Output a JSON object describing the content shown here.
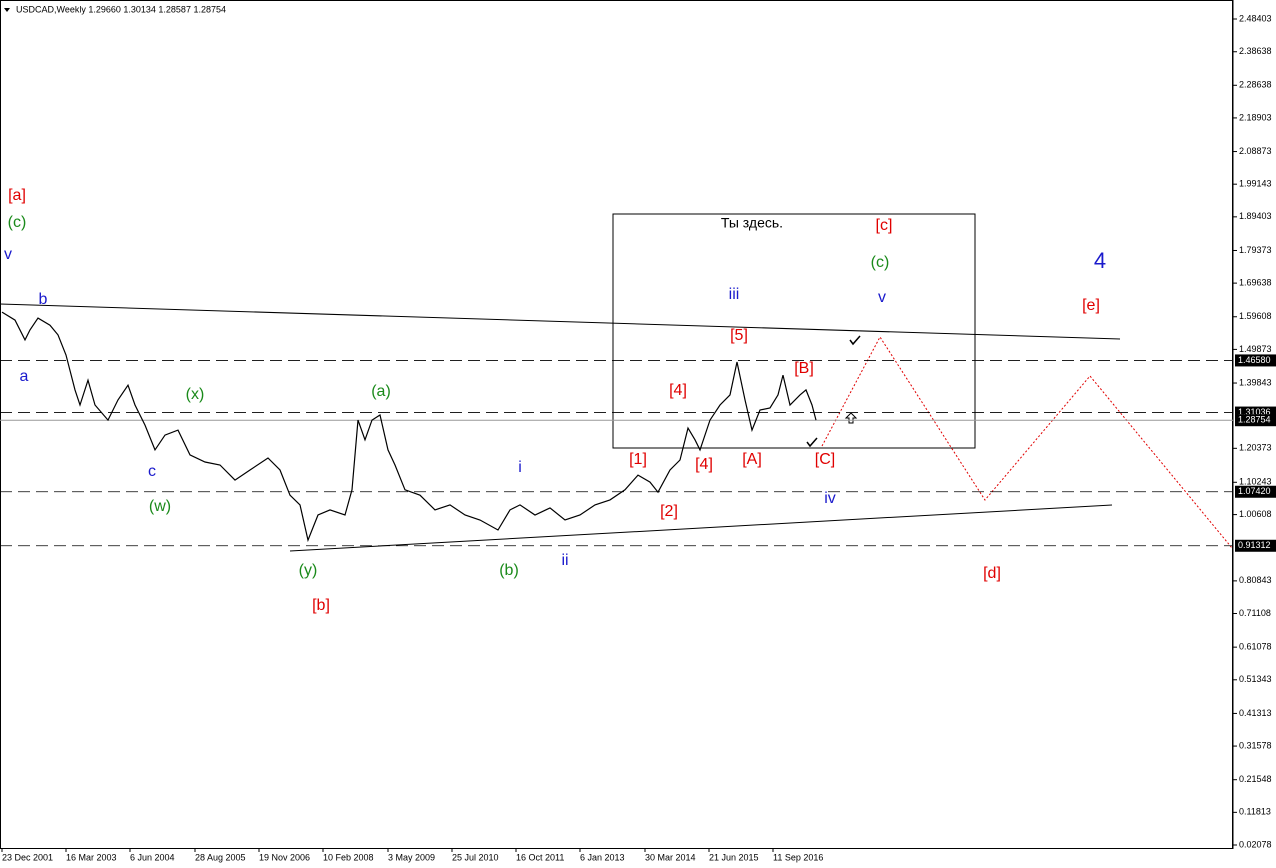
{
  "chart_data": {
    "type": "line",
    "title": "USDCAD,Weekly  1.29660 1.30134 1.28587 1.28754",
    "xlim": [
      -2,
      1230
    ],
    "ylim": [
      0.0118,
      2.5407
    ],
    "xticks": [
      {
        "value": 0,
        "label": "23 Dec 2001"
      },
      {
        "value": 64,
        "label": "16 Mar 2003"
      },
      {
        "value": 128,
        "label": "6 Jun 2004"
      },
      {
        "value": 193,
        "label": "28 Aug 2005"
      },
      {
        "value": 257,
        "label": "19 Nov 2006"
      },
      {
        "value": 321,
        "label": "10 Feb 2008"
      },
      {
        "value": 386,
        "label": "3 May 2009"
      },
      {
        "value": 450,
        "label": "25 Jul 2010"
      },
      {
        "value": 514,
        "label": "16 Oct 2011"
      },
      {
        "value": 578,
        "label": "6 Jan 2013"
      },
      {
        "value": 643,
        "label": "30 Mar 2014"
      },
      {
        "value": 707,
        "label": "21 Jun 2015"
      },
      {
        "value": 771,
        "label": "11 Sep 2016"
      }
    ],
    "yticks": [
      2.48403,
      2.38638,
      2.28638,
      2.18903,
      2.08873,
      1.99143,
      1.89403,
      1.79373,
      1.69638,
      1.59608,
      1.49873,
      1.39843,
      1.20373,
      1.10243,
      1.00608,
      0.80843,
      0.71108,
      0.61078,
      0.51343,
      0.41313,
      0.31578,
      0.21548,
      0.11813,
      0.02078
    ],
    "levels": [
      {
        "value": 1.4658,
        "label": "1.46580"
      },
      {
        "value": 1.31036,
        "label": "1.31036"
      },
      {
        "value": 1.0742,
        "label": "1.07420"
      },
      {
        "value": 0.91312,
        "label": "0.91312"
      }
    ],
    "last_price": {
      "value": 1.28754,
      "label": "1.28754"
    },
    "series": [
      {
        "name": "USDCAD",
        "color": "#000000",
        "x": [
          0,
          13,
          23,
          28,
          36,
          48,
          56,
          64,
          73,
          78,
          86,
          93,
          106,
          116,
          126,
          133,
          143,
          153,
          163,
          176,
          188,
          203,
          218,
          233,
          248,
          266,
          278,
          288,
          298,
          306,
          316,
          328,
          343,
          350,
          356,
          363,
          370,
          378,
          386,
          393,
          403,
          418,
          433,
          448,
          463,
          478,
          496,
          508,
          518,
          533,
          548,
          563,
          578,
          593,
          608,
          623,
          636,
          648,
          656,
          668,
          678,
          686,
          693,
          698,
          708,
          718,
          728,
          735,
          743,
          750,
          758,
          768,
          776,
          781,
          788,
          798,
          804,
          810,
          814
        ],
        "values": [
          1.61,
          1.586,
          1.527,
          1.557,
          1.592,
          1.571,
          1.542,
          1.482,
          1.378,
          1.333,
          1.407,
          1.333,
          1.288,
          1.348,
          1.392,
          1.333,
          1.273,
          1.199,
          1.243,
          1.258,
          1.184,
          1.163,
          1.154,
          1.109,
          1.139,
          1.175,
          1.139,
          1.064,
          1.035,
          0.93,
          1.005,
          1.02,
          1.005,
          1.08,
          1.288,
          1.229,
          1.288,
          1.303,
          1.199,
          1.154,
          1.08,
          1.064,
          1.02,
          1.035,
          1.005,
          0.99,
          0.96,
          1.02,
          1.035,
          1.005,
          1.026,
          0.99,
          1.005,
          1.035,
          1.05,
          1.08,
          1.124,
          1.103,
          1.073,
          1.139,
          1.169,
          1.264,
          1.229,
          1.199,
          1.288,
          1.333,
          1.363,
          1.461,
          1.348,
          1.258,
          1.318,
          1.324,
          1.363,
          1.422,
          1.333,
          1.363,
          1.378,
          1.333,
          1.288
        ]
      }
    ],
    "annotations": [
      {
        "text": "[a]",
        "color": "#e00000"
      },
      {
        "text": "(c)",
        "color": "#1a8a1a"
      },
      {
        "text": "v",
        "color": "#1a1acc"
      },
      {
        "text": "b",
        "color": "#1a1acc"
      },
      {
        "text": "a",
        "color": "#1a1acc"
      },
      {
        "text": "c",
        "color": "#1a1acc"
      },
      {
        "text": "(w)",
        "color": "#1a8a1a"
      },
      {
        "text": "(x)",
        "color": "#1a8a1a"
      },
      {
        "text": "(y)",
        "color": "#1a8a1a"
      },
      {
        "text": "[b]",
        "color": "#e00000"
      },
      {
        "text": "(a)",
        "color": "#1a8a1a"
      },
      {
        "text": "(b)",
        "color": "#1a8a1a"
      },
      {
        "text": "i",
        "color": "#1a1acc"
      },
      {
        "text": "ii",
        "color": "#1a1acc"
      },
      {
        "text": "[1]",
        "color": "#e00000"
      },
      {
        "text": "[2]",
        "color": "#e00000"
      },
      {
        "text": "[4]",
        "color": "#e00000"
      },
      {
        "text": "[4]",
        "color": "#e00000"
      },
      {
        "text": "[5]",
        "color": "#e00000"
      },
      {
        "text": "iii",
        "color": "#1a1acc"
      },
      {
        "text": "[A]",
        "color": "#e00000"
      },
      {
        "text": "[B]",
        "color": "#e00000"
      },
      {
        "text": "[C]",
        "color": "#e00000"
      },
      {
        "text": "iv",
        "color": "#1a1acc"
      },
      {
        "text": "[c]",
        "color": "#e00000"
      },
      {
        "text": "(c)",
        "color": "#1a8a1a"
      },
      {
        "text": "v",
        "color": "#1a1acc"
      },
      {
        "text": "4",
        "color": "#1a1acc"
      },
      {
        "text": "[e]",
        "color": "#e00000"
      },
      {
        "text": "[d]",
        "color": "#e00000"
      },
      {
        "text": "Ты здесь.",
        "color": "#000000"
      }
    ]
  }
}
